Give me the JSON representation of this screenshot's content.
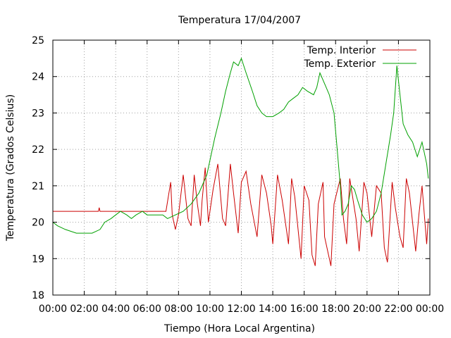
{
  "chart_data": {
    "type": "line",
    "title": "Temperatura 17/04/2007",
    "xlabel": "Tiempo (Hora Local Argentina)",
    "ylabel": "Temperatura (Grados Celsius)",
    "xlim": [
      0,
      24
    ],
    "ylim": [
      18,
      25
    ],
    "grid": true,
    "legend_position": "top-right",
    "x_ticks": [
      0,
      2,
      4,
      6,
      8,
      10,
      12,
      14,
      16,
      18,
      20,
      22,
      24
    ],
    "x_tick_labels": [
      "00:00",
      "02:00",
      "04:00",
      "06:00",
      "08:00",
      "10:00",
      "12:00",
      "14:00",
      "16:00",
      "18:00",
      "20:00",
      "22:00",
      "00:00"
    ],
    "y_ticks": [
      18,
      19,
      20,
      21,
      22,
      23,
      24,
      25
    ],
    "y_tick_labels": [
      "18",
      "19",
      "20",
      "21",
      "22",
      "23",
      "24",
      "25"
    ],
    "series": [
      {
        "name": "Temp. Interior",
        "color": "#cc0000",
        "x": [
          0,
          2.9,
          2.95,
          3.0,
          7.2,
          7.5,
          7.6,
          7.8,
          8.0,
          8.3,
          8.6,
          8.8,
          9.0,
          9.2,
          9.4,
          9.5,
          9.7,
          9.9,
          10.2,
          10.5,
          10.8,
          11.0,
          11.3,
          11.5,
          11.8,
          12.0,
          12.3,
          12.6,
          13.0,
          13.3,
          13.6,
          13.9,
          14.0,
          14.3,
          14.6,
          15.0,
          15.2,
          15.4,
          15.8,
          16.0,
          16.3,
          16.5,
          16.7,
          16.9,
          17.2,
          17.3,
          17.7,
          17.9,
          18.3,
          18.5,
          18.7,
          18.9,
          19.3,
          19.5,
          19.8,
          20.0,
          20.3,
          20.6,
          20.9,
          21.1,
          21.3,
          21.6,
          21.8,
          22.1,
          22.3,
          22.5,
          22.7,
          23.1,
          23.3,
          23.5,
          23.8,
          23.9
        ],
        "values": [
          20.3,
          20.3,
          20.4,
          20.3,
          20.3,
          21.1,
          20.2,
          19.8,
          20.2,
          21.3,
          20.1,
          19.9,
          21.3,
          20.5,
          19.9,
          20.6,
          21.5,
          20.0,
          20.9,
          21.6,
          20.1,
          19.9,
          21.6,
          20.8,
          19.7,
          21.1,
          21.4,
          20.5,
          19.6,
          21.3,
          20.8,
          19.9,
          19.4,
          21.3,
          20.6,
          19.4,
          21.2,
          20.7,
          19.0,
          21.0,
          20.6,
          19.1,
          18.8,
          20.5,
          21.1,
          19.6,
          18.8,
          20.5,
          21.2,
          20.1,
          19.4,
          21.2,
          20.1,
          19.2,
          21.1,
          20.8,
          19.6,
          21.0,
          20.8,
          19.3,
          18.9,
          21.1,
          20.4,
          19.6,
          19.3,
          21.2,
          20.8,
          19.2,
          20.2,
          21.0,
          19.4,
          20.1
        ]
      },
      {
        "name": "Temp. Exterior",
        "color": "#00a000",
        "x": [
          0,
          0.3,
          0.8,
          1.5,
          2.5,
          3.0,
          3.3,
          3.7,
          4.0,
          4.3,
          4.7,
          5.0,
          5.3,
          5.7,
          6.0,
          6.5,
          7.0,
          7.3,
          7.8,
          8.3,
          8.8,
          9.3,
          9.8,
          10.3,
          10.7,
          11.0,
          11.3,
          11.5,
          11.8,
          12.0,
          12.3,
          12.7,
          13.0,
          13.3,
          13.6,
          14.0,
          14.4,
          14.7,
          15.0,
          15.3,
          15.6,
          15.9,
          16.2,
          16.6,
          16.8,
          17.0,
          17.4,
          17.6,
          17.9,
          18.1,
          18.3,
          18.4,
          18.6,
          18.8,
          19.0,
          19.2,
          19.4,
          19.7,
          20.0,
          20.3,
          20.6,
          20.9,
          21.2,
          21.5,
          21.7,
          21.9,
          22.1,
          22.3,
          22.6,
          22.9,
          23.2,
          23.5,
          23.8,
          23.9
        ],
        "values": [
          20.0,
          19.9,
          19.8,
          19.7,
          19.7,
          19.8,
          20.0,
          20.1,
          20.2,
          20.3,
          20.2,
          20.1,
          20.2,
          20.3,
          20.2,
          20.2,
          20.2,
          20.1,
          20.2,
          20.3,
          20.5,
          20.8,
          21.3,
          22.3,
          23.0,
          23.6,
          24.1,
          24.4,
          24.3,
          24.5,
          24.1,
          23.6,
          23.2,
          23.0,
          22.9,
          22.9,
          23.0,
          23.1,
          23.3,
          23.4,
          23.5,
          23.7,
          23.6,
          23.5,
          23.7,
          24.1,
          23.7,
          23.5,
          23.0,
          22.0,
          21.0,
          20.2,
          20.3,
          20.5,
          21.0,
          20.9,
          20.6,
          20.2,
          20.0,
          20.1,
          20.3,
          20.8,
          21.6,
          22.4,
          23.0,
          24.3,
          23.5,
          22.7,
          22.4,
          22.2,
          21.8,
          22.2,
          21.6,
          21.2
        ]
      }
    ]
  }
}
